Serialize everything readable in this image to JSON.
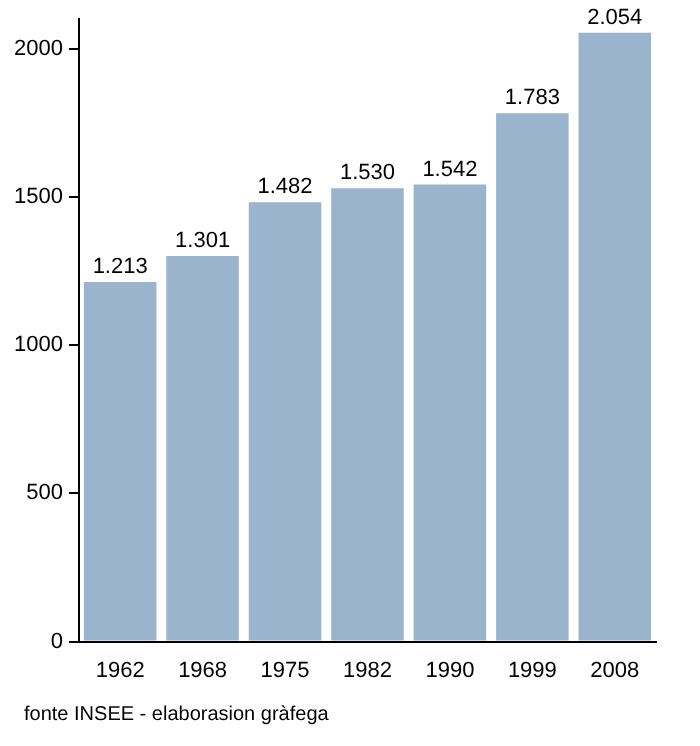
{
  "chart_data": {
    "type": "bar",
    "categories": [
      "1962",
      "1968",
      "1975",
      "1982",
      "1990",
      "1999",
      "2008"
    ],
    "values": [
      1213,
      1301,
      1482,
      1530,
      1542,
      1783,
      2054
    ],
    "value_labels": [
      "1.213",
      "1.301",
      "1.482",
      "1.530",
      "1.542",
      "1.783",
      "2.054"
    ],
    "color": "#9bb4cd",
    "ylim": [
      0,
      2100
    ],
    "yticks": [
      0,
      500,
      1000,
      1500,
      2000
    ],
    "grid": false,
    "legend": false,
    "annotations": [
      "fonte INSEE - elaborasion gràfega"
    ]
  }
}
